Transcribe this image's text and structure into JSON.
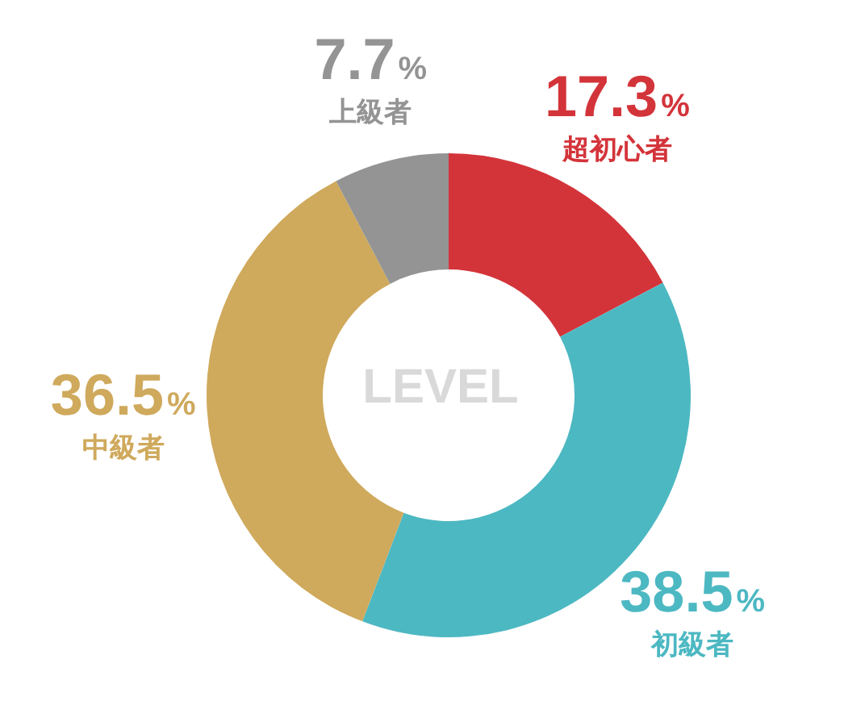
{
  "chart_data": {
    "type": "donut",
    "title": "LEVEL",
    "categories": [
      "超初心者",
      "初級者",
      "中級者",
      "上級者"
    ],
    "values": [
      17.3,
      38.5,
      36.5,
      7.7
    ],
    "colors": [
      "#d3343a",
      "#4cb8c2",
      "#cfa95c",
      "#949494"
    ],
    "value_labels": [
      "17.3%",
      "38.5%",
      "36.5%",
      "7.7%"
    ]
  }
}
